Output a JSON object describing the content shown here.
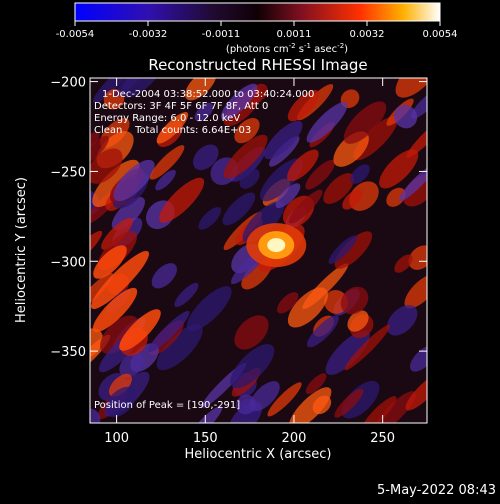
{
  "colorbar": {
    "ticks": [
      "-0.0054",
      "-0.0032",
      "-0.0011",
      "0.0011",
      "0.0032",
      "0.0054"
    ],
    "range": [
      -0.0054,
      0.0054
    ],
    "units_main": "(photons cm",
    "units_sup1": "-2",
    "units_mid1": " s",
    "units_sup2": "-1",
    "units_mid2": " asec",
    "units_sup3": "-2",
    "units_end": ")"
  },
  "title": "Reconstructed RHESSI Image",
  "info": {
    "time": "1-Dec-2004 03:38:52.000 to 03:40:24.000",
    "detectors": "Detectors: 3F 4F 5F 6F 7F 8F, Att 0",
    "energy": "Energy Range: 6.0 - 12.0 keV",
    "clean": "Clean    Total counts: 6.64E+03",
    "peak": "Position of Peak = [190,-291]"
  },
  "axes": {
    "xlabel": "Heliocentric X (arcsec)",
    "ylabel": "Heliocentric Y (arcsec)",
    "xlim": [
      85,
      275
    ],
    "ylim": [
      -390,
      -198
    ],
    "xticks": [
      100,
      150,
      200,
      250
    ],
    "yticks": [
      -200,
      -250,
      -300,
      -350
    ]
  },
  "image": {
    "peak": [
      190,
      -291
    ],
    "colors": {
      "low": "#3a1c9c",
      "mid": "#1a0a10",
      "high": "#ff2a00",
      "top": "#ffffff"
    }
  },
  "footer": {
    "date": "5-May-2022 08:43"
  }
}
